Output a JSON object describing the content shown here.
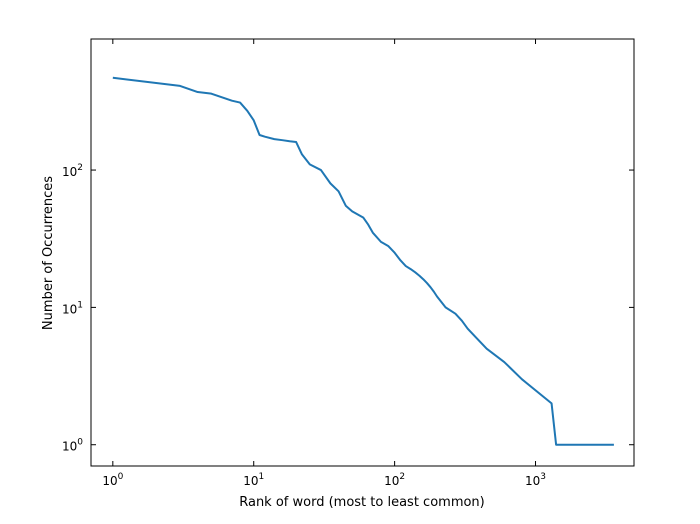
{
  "chart_data": {
    "type": "line",
    "title": "",
    "xlabel": "Rank of word (most to least common)",
    "ylabel": "Number of Occurrences",
    "xscale": "log",
    "yscale": "log",
    "xlim": [
      0.7,
      5000
    ],
    "ylim": [
      0.7,
      900
    ],
    "grid": false,
    "legend": "none",
    "line_color": "#1f77b4",
    "x_ticks": [
      {
        "base": "10",
        "exp": "0",
        "value": 1
      },
      {
        "base": "10",
        "exp": "1",
        "value": 10
      },
      {
        "base": "10",
        "exp": "2",
        "value": 100
      },
      {
        "base": "10",
        "exp": "3",
        "value": 1000
      }
    ],
    "y_ticks": [
      {
        "base": "10",
        "exp": "0",
        "value": 1
      },
      {
        "base": "10",
        "exp": "1",
        "value": 10
      },
      {
        "base": "10",
        "exp": "2",
        "value": 100
      }
    ],
    "series": [
      {
        "x": [
          1,
          3,
          4,
          5,
          7,
          8,
          9,
          10,
          11,
          12,
          14,
          16,
          18,
          20,
          22,
          25,
          30,
          35,
          40,
          45,
          50,
          60,
          65,
          70,
          80,
          90,
          100,
          110,
          120,
          130,
          140,
          150,
          160,
          170,
          180,
          190,
          200,
          230,
          270,
          300,
          330,
          380,
          450,
          600,
          800,
          1300,
          1400,
          3600
        ],
        "y": [
          470,
          410,
          370,
          360,
          320,
          310,
          270,
          230,
          180,
          175,
          168,
          165,
          162,
          160,
          130,
          110,
          100,
          80,
          70,
          55,
          50,
          45,
          40,
          35,
          30,
          28,
          25,
          22,
          20,
          19,
          18,
          17,
          16,
          15,
          14,
          13,
          12,
          10,
          9,
          8,
          7,
          6,
          5,
          4,
          3,
          2,
          1,
          1
        ]
      }
    ]
  }
}
